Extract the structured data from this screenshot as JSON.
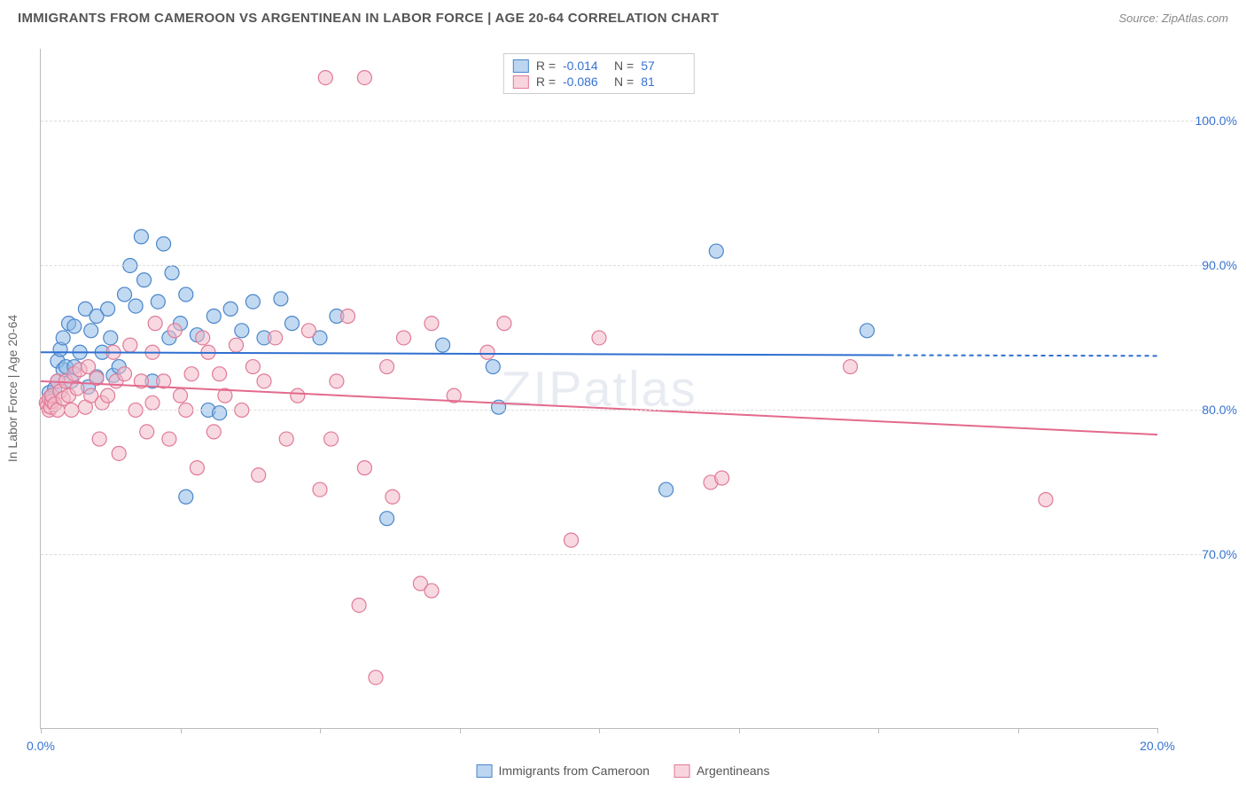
{
  "title": "IMMIGRANTS FROM CAMEROON VS ARGENTINEAN IN LABOR FORCE | AGE 20-64 CORRELATION CHART",
  "source": "Source: ZipAtlas.com",
  "watermark": "ZIPatlas",
  "ylabel": "In Labor Force | Age 20-64",
  "chart": {
    "type": "scatter",
    "xlim": [
      0,
      20
    ],
    "ylim": [
      58,
      105
    ],
    "yticks": [
      70,
      80,
      90,
      100
    ],
    "ytick_labels": [
      "70.0%",
      "80.0%",
      "90.0%",
      "100.0%"
    ],
    "xticks": [
      0,
      2.5,
      5,
      7.5,
      10,
      12.5,
      15,
      17.5,
      20
    ],
    "xtick_labels": {
      "0": "0.0%",
      "20": "20.0%"
    },
    "grid_color": "#dddddd",
    "axis_color": "#bbbbbb",
    "background_color": "#ffffff",
    "marker_radius": 8,
    "marker_opacity": 0.55,
    "series": [
      {
        "name": "Immigrants from Cameroon",
        "fill_color": "#8fb9e8",
        "stroke_color": "#4a86c9",
        "line_color": "#2f6fd0",
        "R": "-0.014",
        "N": "57",
        "trend": {
          "x1": 0,
          "y1": 84.0,
          "x2": 15.2,
          "y2": 83.8,
          "dash_x2": 20,
          "dash_y2": 83.75
        },
        "points": [
          [
            0.15,
            81.2
          ],
          [
            0.18,
            80.8
          ],
          [
            0.2,
            81.0
          ],
          [
            0.25,
            81.5
          ],
          [
            0.3,
            83.4
          ],
          [
            0.3,
            82.0
          ],
          [
            0.35,
            84.2
          ],
          [
            0.4,
            82.8
          ],
          [
            0.4,
            85.0
          ],
          [
            0.45,
            83.0
          ],
          [
            0.5,
            86.0
          ],
          [
            0.55,
            82.0
          ],
          [
            0.6,
            83.0
          ],
          [
            0.6,
            85.8
          ],
          [
            0.7,
            84.0
          ],
          [
            0.8,
            87.0
          ],
          [
            0.85,
            81.6
          ],
          [
            0.9,
            85.5
          ],
          [
            1.0,
            86.5
          ],
          [
            1.0,
            82.3
          ],
          [
            1.1,
            84.0
          ],
          [
            1.2,
            87.0
          ],
          [
            1.25,
            85.0
          ],
          [
            1.3,
            82.4
          ],
          [
            1.4,
            83.0
          ],
          [
            1.5,
            88.0
          ],
          [
            1.6,
            90.0
          ],
          [
            1.7,
            87.2
          ],
          [
            1.8,
            92.0
          ],
          [
            1.85,
            89.0
          ],
          [
            2.0,
            82.0
          ],
          [
            2.1,
            87.5
          ],
          [
            2.2,
            91.5
          ],
          [
            2.3,
            85.0
          ],
          [
            2.35,
            89.5
          ],
          [
            2.5,
            86.0
          ],
          [
            2.6,
            88.0
          ],
          [
            2.8,
            85.2
          ],
          [
            3.0,
            80.0
          ],
          [
            3.1,
            86.5
          ],
          [
            3.2,
            79.8
          ],
          [
            3.4,
            87.0
          ],
          [
            3.6,
            85.5
          ],
          [
            3.8,
            87.5
          ],
          [
            4.0,
            85.0
          ],
          [
            4.3,
            87.7
          ],
          [
            4.5,
            86.0
          ],
          [
            5.0,
            85.0
          ],
          [
            5.3,
            86.5
          ],
          [
            6.2,
            72.5
          ],
          [
            7.2,
            84.5
          ],
          [
            8.1,
            83.0
          ],
          [
            8.2,
            80.2
          ],
          [
            2.6,
            74.0
          ],
          [
            11.2,
            74.5
          ],
          [
            12.1,
            91.0
          ],
          [
            14.8,
            85.5
          ]
        ]
      },
      {
        "name": "Argentineans",
        "fill_color": "#f3b9c8",
        "stroke_color": "#e07a97",
        "line_color": "#e36a8c",
        "R": "-0.086",
        "N": "81",
        "trend": {
          "x1": 0,
          "y1": 82.0,
          "x2": 20,
          "y2": 78.3
        },
        "points": [
          [
            0.1,
            80.5
          ],
          [
            0.12,
            80.3
          ],
          [
            0.15,
            80.0
          ],
          [
            0.15,
            80.8
          ],
          [
            0.18,
            80.2
          ],
          [
            0.2,
            80.6
          ],
          [
            0.2,
            81.0
          ],
          [
            0.25,
            80.4
          ],
          [
            0.3,
            82.0
          ],
          [
            0.3,
            80.0
          ],
          [
            0.35,
            81.3
          ],
          [
            0.4,
            80.8
          ],
          [
            0.45,
            82.0
          ],
          [
            0.5,
            81.0
          ],
          [
            0.55,
            80.0
          ],
          [
            0.6,
            82.5
          ],
          [
            0.65,
            81.5
          ],
          [
            0.7,
            82.8
          ],
          [
            0.8,
            80.2
          ],
          [
            0.85,
            83.0
          ],
          [
            0.9,
            81.0
          ],
          [
            1.0,
            82.2
          ],
          [
            1.05,
            78.0
          ],
          [
            1.1,
            80.5
          ],
          [
            1.2,
            81.0
          ],
          [
            1.3,
            84.0
          ],
          [
            1.35,
            82.0
          ],
          [
            1.4,
            77.0
          ],
          [
            1.5,
            82.5
          ],
          [
            1.6,
            84.5
          ],
          [
            1.7,
            80.0
          ],
          [
            1.8,
            82.0
          ],
          [
            1.9,
            78.5
          ],
          [
            2.0,
            84.0
          ],
          [
            2.0,
            80.5
          ],
          [
            2.05,
            86.0
          ],
          [
            2.2,
            82.0
          ],
          [
            2.3,
            78.0
          ],
          [
            2.4,
            85.5
          ],
          [
            2.5,
            81.0
          ],
          [
            2.6,
            80.0
          ],
          [
            2.7,
            82.5
          ],
          [
            2.8,
            76.0
          ],
          [
            2.9,
            85.0
          ],
          [
            3.0,
            84.0
          ],
          [
            3.1,
            78.5
          ],
          [
            3.2,
            82.5
          ],
          [
            3.3,
            81.0
          ],
          [
            3.5,
            84.5
          ],
          [
            3.6,
            80.0
          ],
          [
            3.8,
            83.0
          ],
          [
            3.9,
            75.5
          ],
          [
            4.0,
            82.0
          ],
          [
            4.2,
            85.0
          ],
          [
            4.4,
            78.0
          ],
          [
            4.6,
            81.0
          ],
          [
            4.8,
            85.5
          ],
          [
            5.0,
            74.5
          ],
          [
            5.1,
            103.0
          ],
          [
            5.2,
            78.0
          ],
          [
            5.3,
            82.0
          ],
          [
            5.5,
            86.5
          ],
          [
            5.7,
            66.5
          ],
          [
            5.8,
            76.0
          ],
          [
            5.8,
            103.0
          ],
          [
            6.0,
            61.5
          ],
          [
            6.2,
            83.0
          ],
          [
            6.3,
            74.0
          ],
          [
            6.5,
            85.0
          ],
          [
            6.8,
            68.0
          ],
          [
            7.0,
            67.5
          ],
          [
            7.0,
            86.0
          ],
          [
            7.4,
            81.0
          ],
          [
            8.0,
            84.0
          ],
          [
            8.3,
            86.0
          ],
          [
            9.5,
            71.0
          ],
          [
            10.0,
            85.0
          ],
          [
            12.0,
            75.0
          ],
          [
            12.2,
            75.3
          ],
          [
            14.5,
            83.0
          ],
          [
            18.0,
            73.8
          ]
        ]
      }
    ]
  },
  "legend_top_label_r": "R =",
  "legend_top_label_n": "N ="
}
